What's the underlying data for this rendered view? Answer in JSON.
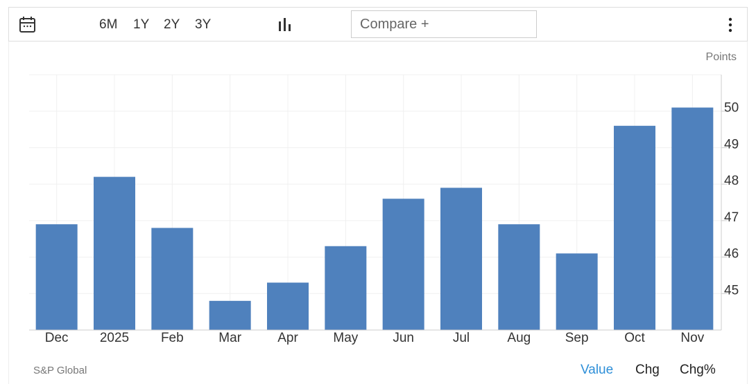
{
  "toolbar": {
    "ranges": [
      "6M",
      "1Y",
      "2Y",
      "3Y"
    ],
    "compare": "Compare +"
  },
  "chart_data": {
    "type": "bar",
    "unit_label": "Points",
    "categories": [
      "Dec",
      "2025",
      "Feb",
      "Mar",
      "Apr",
      "May",
      "Jun",
      "Jul",
      "Aug",
      "Sep",
      "Oct",
      "Nov"
    ],
    "values": [
      46.9,
      48.2,
      46.8,
      44.8,
      45.3,
      46.3,
      47.6,
      47.9,
      46.9,
      46.1,
      49.6,
      50.1
    ],
    "color": "#4f81bd",
    "ylim": [
      44,
      51
    ],
    "yticks": [
      45,
      46,
      47,
      48,
      49,
      50
    ],
    "grid": true,
    "y_axis_side": "right"
  },
  "footer": {
    "source": "S&P Global",
    "tabs": [
      "Value",
      "Chg",
      "Chg%"
    ]
  }
}
